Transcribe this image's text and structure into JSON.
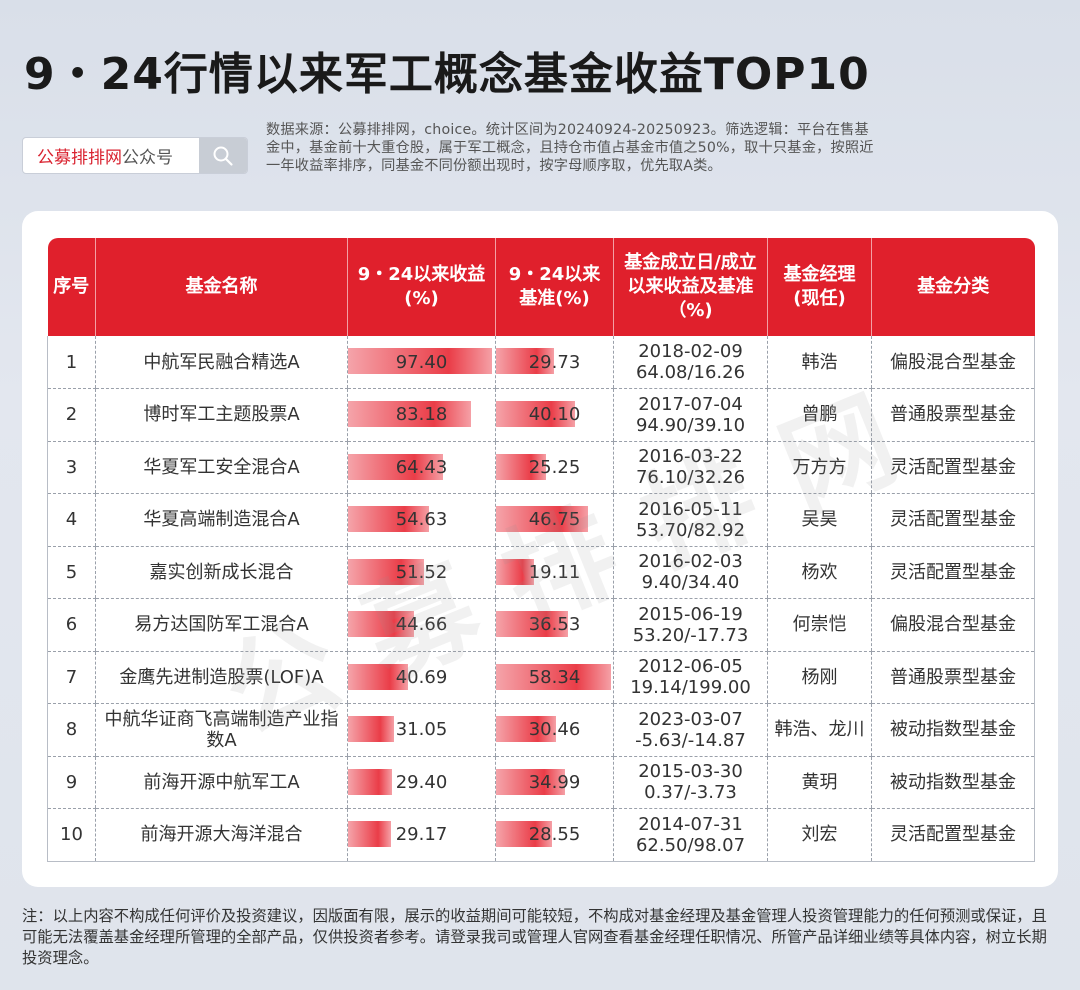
{
  "title": "9・24行情以来军工概念基金收益TOP10",
  "search": {
    "brand": "公募排排网",
    "suffix": "公众号",
    "icon": "search-icon"
  },
  "source_note": "数据来源：公募排排网，choice。统计区间为20240924-20250923。筛选逻辑：平台在售基金中，基金前十大重仓股，属于军工概念，且持仓市值占基金市值之50%，取十只基金，按照近一年收益率排序，同基金不同份额出现时，按字母顺序取，优先取A类。",
  "watermark": "公募排排网",
  "table": {
    "headers": [
      "序号",
      "基金名称",
      "9・24以来收益(%)",
      "9・24以来基准(%)",
      "基金成立日/成立以来收益及基准（%)",
      "基金经理(现任)",
      "基金分类"
    ],
    "rows": [
      {
        "no": "1",
        "name": "中航军民融合精选A",
        "ret": "97.40",
        "ret_v": 97.4,
        "bench": "29.73",
        "bench_v": 29.73,
        "date": "2018-02-09",
        "since": "64.08/16.26",
        "manager": "韩浩",
        "category": "偏股混合型基金"
      },
      {
        "no": "2",
        "name": "博时军工主题股票A",
        "ret": "83.18",
        "ret_v": 83.18,
        "bench": "40.10",
        "bench_v": 40.1,
        "date": "2017-07-04",
        "since": "94.90/39.10",
        "manager": "曾鹏",
        "category": "普通股票型基金"
      },
      {
        "no": "3",
        "name": "华夏军工安全混合A",
        "ret": "64.43",
        "ret_v": 64.43,
        "bench": "25.25",
        "bench_v": 25.25,
        "date": "2016-03-22",
        "since": "76.10/32.26",
        "manager": "万方方",
        "category": "灵活配置型基金"
      },
      {
        "no": "4",
        "name": "华夏高端制造混合A",
        "ret": "54.63",
        "ret_v": 54.63,
        "bench": "46.75",
        "bench_v": 46.75,
        "date": "2016-05-11",
        "since": "53.70/82.92",
        "manager": "吴昊",
        "category": "灵活配置型基金"
      },
      {
        "no": "5",
        "name": "嘉实创新成长混合",
        "ret": "51.52",
        "ret_v": 51.52,
        "bench": "19.11",
        "bench_v": 19.11,
        "date": "2016-02-03",
        "since": "9.40/34.40",
        "manager": "杨欢",
        "category": "灵活配置型基金"
      },
      {
        "no": "6",
        "name": "易方达国防军工混合A",
        "ret": "44.66",
        "ret_v": 44.66,
        "bench": "36.53",
        "bench_v": 36.53,
        "date": "2015-06-19",
        "since": "53.20/-17.73",
        "manager": "何崇恺",
        "category": "偏股混合型基金"
      },
      {
        "no": "7",
        "name": "金鹰先进制造股票(LOF)A",
        "ret": "40.69",
        "ret_v": 40.69,
        "bench": "58.34",
        "bench_v": 58.34,
        "date": "2012-06-05",
        "since": "19.14/199.00",
        "manager": "杨刚",
        "category": "普通股票型基金"
      },
      {
        "no": "8",
        "name": "中航华证商飞高端制造产业指数A",
        "ret": "31.05",
        "ret_v": 31.05,
        "bench": "30.46",
        "bench_v": 30.46,
        "date": "2023-03-07",
        "since": "-5.63/-14.87",
        "manager": "韩浩、龙川",
        "category": "被动指数型基金"
      },
      {
        "no": "9",
        "name": "前海开源中航军工A",
        "ret": "29.40",
        "ret_v": 29.4,
        "bench": "34.99",
        "bench_v": 34.99,
        "date": "2015-03-30",
        "since": "0.37/-3.73",
        "manager": "黄玥",
        "category": "被动指数型基金"
      },
      {
        "no": "10",
        "name": "前海开源大海洋混合",
        "ret": "29.17",
        "ret_v": 29.17,
        "bench": "28.55",
        "bench_v": 28.55,
        "date": "2014-07-31",
        "since": "62.50/98.07",
        "manager": "刘宏",
        "category": "灵活配置型基金"
      }
    ]
  },
  "footnote": "注：以上内容不构成任何评价及投资建议，因版面有限，展示的收益期间可能较短，不构成对基金经理及基金管理人投资管理能力的任何预测或保证，且可能无法覆盖基金经理所管理的全部产品，仅供投资者参考。请登录我司或管理人官网查看基金经理任职情况、所管产品详细业绩等具体内容，树立长期投资理念。",
  "colors": {
    "header_red": "#e0202c",
    "brand_red": "#d9222f"
  }
}
